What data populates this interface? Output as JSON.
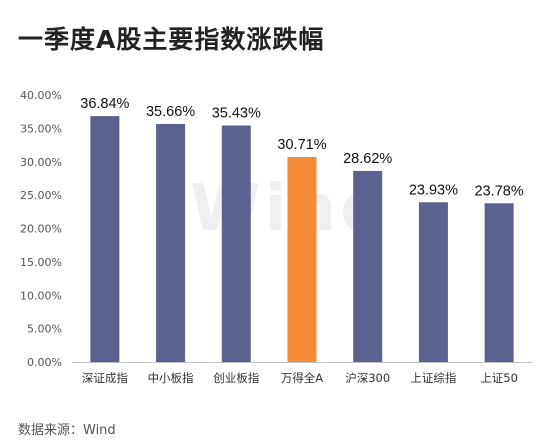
{
  "chart_data": {
    "type": "bar",
    "title": "一季度A股主要指数涨跌幅",
    "source_text": "数据来源：Wind",
    "watermark": "Wind",
    "categories": [
      "深证成指",
      "中小板指",
      "创业板指",
      "万得全A",
      "沪深300",
      "上证综指",
      "上证50"
    ],
    "values": [
      36.84,
      35.66,
      35.43,
      30.71,
      28.62,
      23.93,
      23.78
    ],
    "value_labels": [
      "36.84%",
      "35.66%",
      "35.43%",
      "30.71%",
      "28.62%",
      "23.93%",
      "23.78%"
    ],
    "ylim": [
      0,
      40
    ],
    "yticks": [
      0,
      5,
      10,
      15,
      20,
      25,
      30,
      35,
      40
    ],
    "ytick_labels": [
      "0.00%",
      "5.00%",
      "10.00%",
      "15.00%",
      "20.00%",
      "25.00%",
      "30.00%",
      "35.00%",
      "40.00%"
    ],
    "xlabel": "",
    "ylabel": "",
    "grid": false,
    "legend": "none",
    "colors": {
      "bar": "#5b6290",
      "highlight_bar": "#f58a36",
      "axis": "#bfbfbf",
      "tick_text": "#555555"
    },
    "highlight_index": 3
  }
}
